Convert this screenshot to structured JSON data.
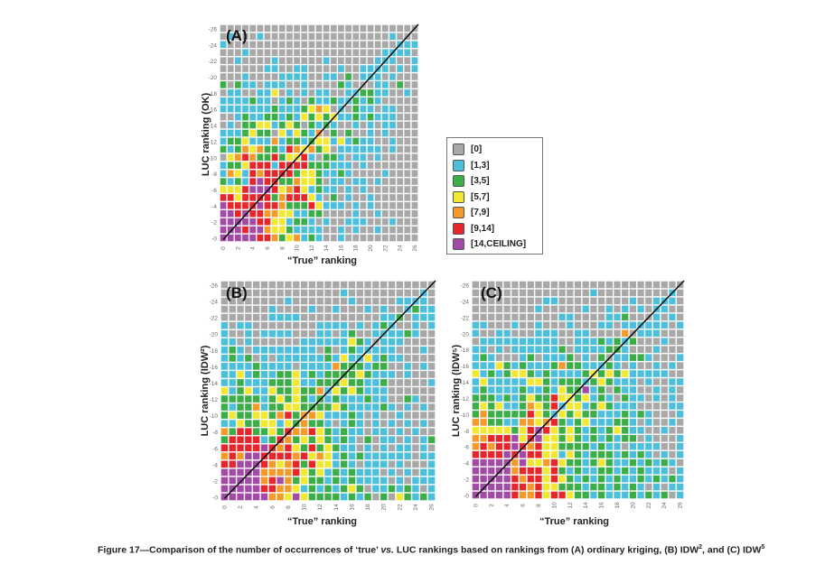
{
  "legend": {
    "items": [
      {
        "label": "[0]",
        "color": "#a8a8a8"
      },
      {
        "label": "[1,3]",
        "color": "#4bbfdc"
      },
      {
        "label": "[3,5]",
        "color": "#3cae48"
      },
      {
        "label": "[5,7]",
        "color": "#f2e832"
      },
      {
        "label": "[7,9]",
        "color": "#f39a2a"
      },
      {
        "label": "[9,14]",
        "color": "#e6262b"
      },
      {
        "label": "[14,CEILING]",
        "color": "#a24aa6"
      }
    ]
  },
  "caption": {
    "prefix": "Figure 17—Comparison of the number of occurrences of ‘true’ ",
    "vs": "vs.",
    "middle": " LUC rankings based on rankings from (A) ordinary kriging, (B) IDW",
    "sup1": "2",
    "middle2": ", and (C) IDW",
    "sup2": "5"
  },
  "chart_data": [
    {
      "type": "heatmap",
      "panel": "(A)",
      "title": "(A)",
      "xlabel": "“True” ranking",
      "ylabel": "LUC ranking (OK)",
      "xlim": [
        0,
        26
      ],
      "ylim": [
        0,
        26
      ],
      "x_ticks": [
        "0",
        "2",
        "4",
        "6",
        "8",
        "10",
        "12",
        "14",
        "16",
        "18",
        "20",
        "22",
        "24",
        "26"
      ],
      "y_ticks": [
        "0",
        "2",
        "4",
        "6",
        "8",
        "10",
        "12",
        "14",
        "16",
        "18",
        "20",
        "22",
        "24",
        "26"
      ],
      "diagonal_line": true,
      "category_legend": [
        "[0]",
        "[1,3]",
        "[3,5]",
        "[5,7]",
        "[7,9]",
        "[9,14]",
        "[14,CEILING]"
      ],
      "rows_top_to_bottom_rank26_to_rank0": [
        "000000000000000000000000000",
        "010001000000000000000001000",
        "100000000000000000000000111",
        "000100000000000000000011110",
        "001000010000001000000111001",
        "000000110011000010011110101",
        "000100001111001102011101000",
        "202110111001000021000110200",
        "011001130101011001122110010",
        "111121101210211211212100000",
        "111111121112343010211011000",
        "001211221213232311212111000",
        "010223312320212100101011000",
        "111232203132140202001010000",
        "122311141221233131211001000",
        "212434221543423011111101000",
        "034542252335102210110100000",
        "122355515555222111010000000",
        "143154555523321121000010000",
        "212156552243320110110100000",
        "333566653453121101010000000",
        "553555524555310201001000000",
        "655556554222531110101000000",
        "665655443311220000100100000",
        "666665533122101001110001000",
        "666566433211110010100100000",
        "666665542341210010000000000"
      ]
    },
    {
      "type": "heatmap",
      "panel": "(B)",
      "title": "(B)",
      "xlabel": "“True” ranking",
      "ylabel": "LUC ranking (IDW²)",
      "xlim": [
        0,
        26
      ],
      "ylim": [
        0,
        26
      ],
      "x_ticks": [
        "0",
        "2",
        "4",
        "6",
        "8",
        "10",
        "12",
        "14",
        "16",
        "18",
        "20",
        "22",
        "24",
        "26"
      ],
      "y_ticks": [
        "0",
        "2",
        "4",
        "6",
        "8",
        "10",
        "12",
        "14",
        "16",
        "18",
        "20",
        "22",
        "24",
        "26"
      ],
      "diagonal_line": true,
      "category_legend": [
        "[0]",
        "[1,3]",
        "[3,5]",
        "[5,7]",
        "[7,9]",
        "[9,14]",
        "[14,CEILING]"
      ],
      "rows_top_to_bottom_rank26_to_rank0": [
        "000000000000000000000000000",
        "000000000000000100000000010",
        "000000001000000010000011110",
        "000000100001001000101001211",
        "000000111100000000001120111",
        "101100000000111101012100101",
        "100101111000110120011112100",
        "110100000011111132101110000",
        "121011111111020121111100010",
        "121201011111121311312110000",
        "111121111011114222122001010",
        "113121122312122223211101000",
        "112111222311222322112000001",
        "312311322322413232111000000",
        "222221232321212111211002100",
        "212241223322223211112101010",
        "232233245244311121010010000",
        "113223313242210121010101010",
        "425522325445321211011010100",
        "255551254232321210201101012",
        "555556545325232110101011010",
        "454665555453431212111111011",
        "556665434525331210111010001",
        "666664444532312121110101011",
        "666664564232212121111010111",
        "666665544312121232011212101",
        "666666443632222121202032121"
      ]
    },
    {
      "type": "heatmap",
      "panel": "(C)",
      "title": "(C)",
      "xlabel": "“True” ranking",
      "ylabel": "LUC ranking (IDW⁵)",
      "xlim": [
        0,
        26
      ],
      "ylim": [
        0,
        26
      ],
      "x_ticks": [
        "0",
        "2",
        "4",
        "6",
        "8",
        "10",
        "12",
        "14",
        "16",
        "18",
        "20",
        "22",
        "24",
        "26"
      ],
      "y_ticks": [
        "0",
        "2",
        "4",
        "6",
        "8",
        "10",
        "12",
        "14",
        "16",
        "18",
        "20",
        "22",
        "24",
        "26"
      ],
      "diagonal_line": true,
      "category_legend": [
        "[0]",
        "[1,3]",
        "[3,5]",
        "[5,7]",
        "[7,9]",
        "[9,14]",
        "[14,CEILING]"
      ],
      "rows_top_to_bottom_rank26_to_rank0": [
        "000000000000000000000000000",
        "000000000000000100000000010",
        "000000000110000000001001110",
        "000000001000001001010101100",
        "000000000001100001120001010",
        "110001001000100011011111101",
        "100110001110011000040111000",
        "011111111110011121212000100",
        "110101111112011112210001000",
        "121000120111201020112210001",
        "111321211124221112101001010",
        "312123321211112323231111100",
        "131111133212221232111010011",
        "121111211213226120211001010",
        "222121232253323121021101010",
        "232311243251331232111000011",
        "242222253213232211121210001",
        "442211443452123111221010010",
        "333332356532321212321100100",
        "445556356332321212122010001",
        "454556545332222121101111001",
        "555565655331321222121210101",
        "666664633453221232112121210",
        "666664555352121122121211101",
        "666665455353212121211212121",
        "666665545332221221212101011",
        "666665445355322121112121201"
      ]
    }
  ]
}
